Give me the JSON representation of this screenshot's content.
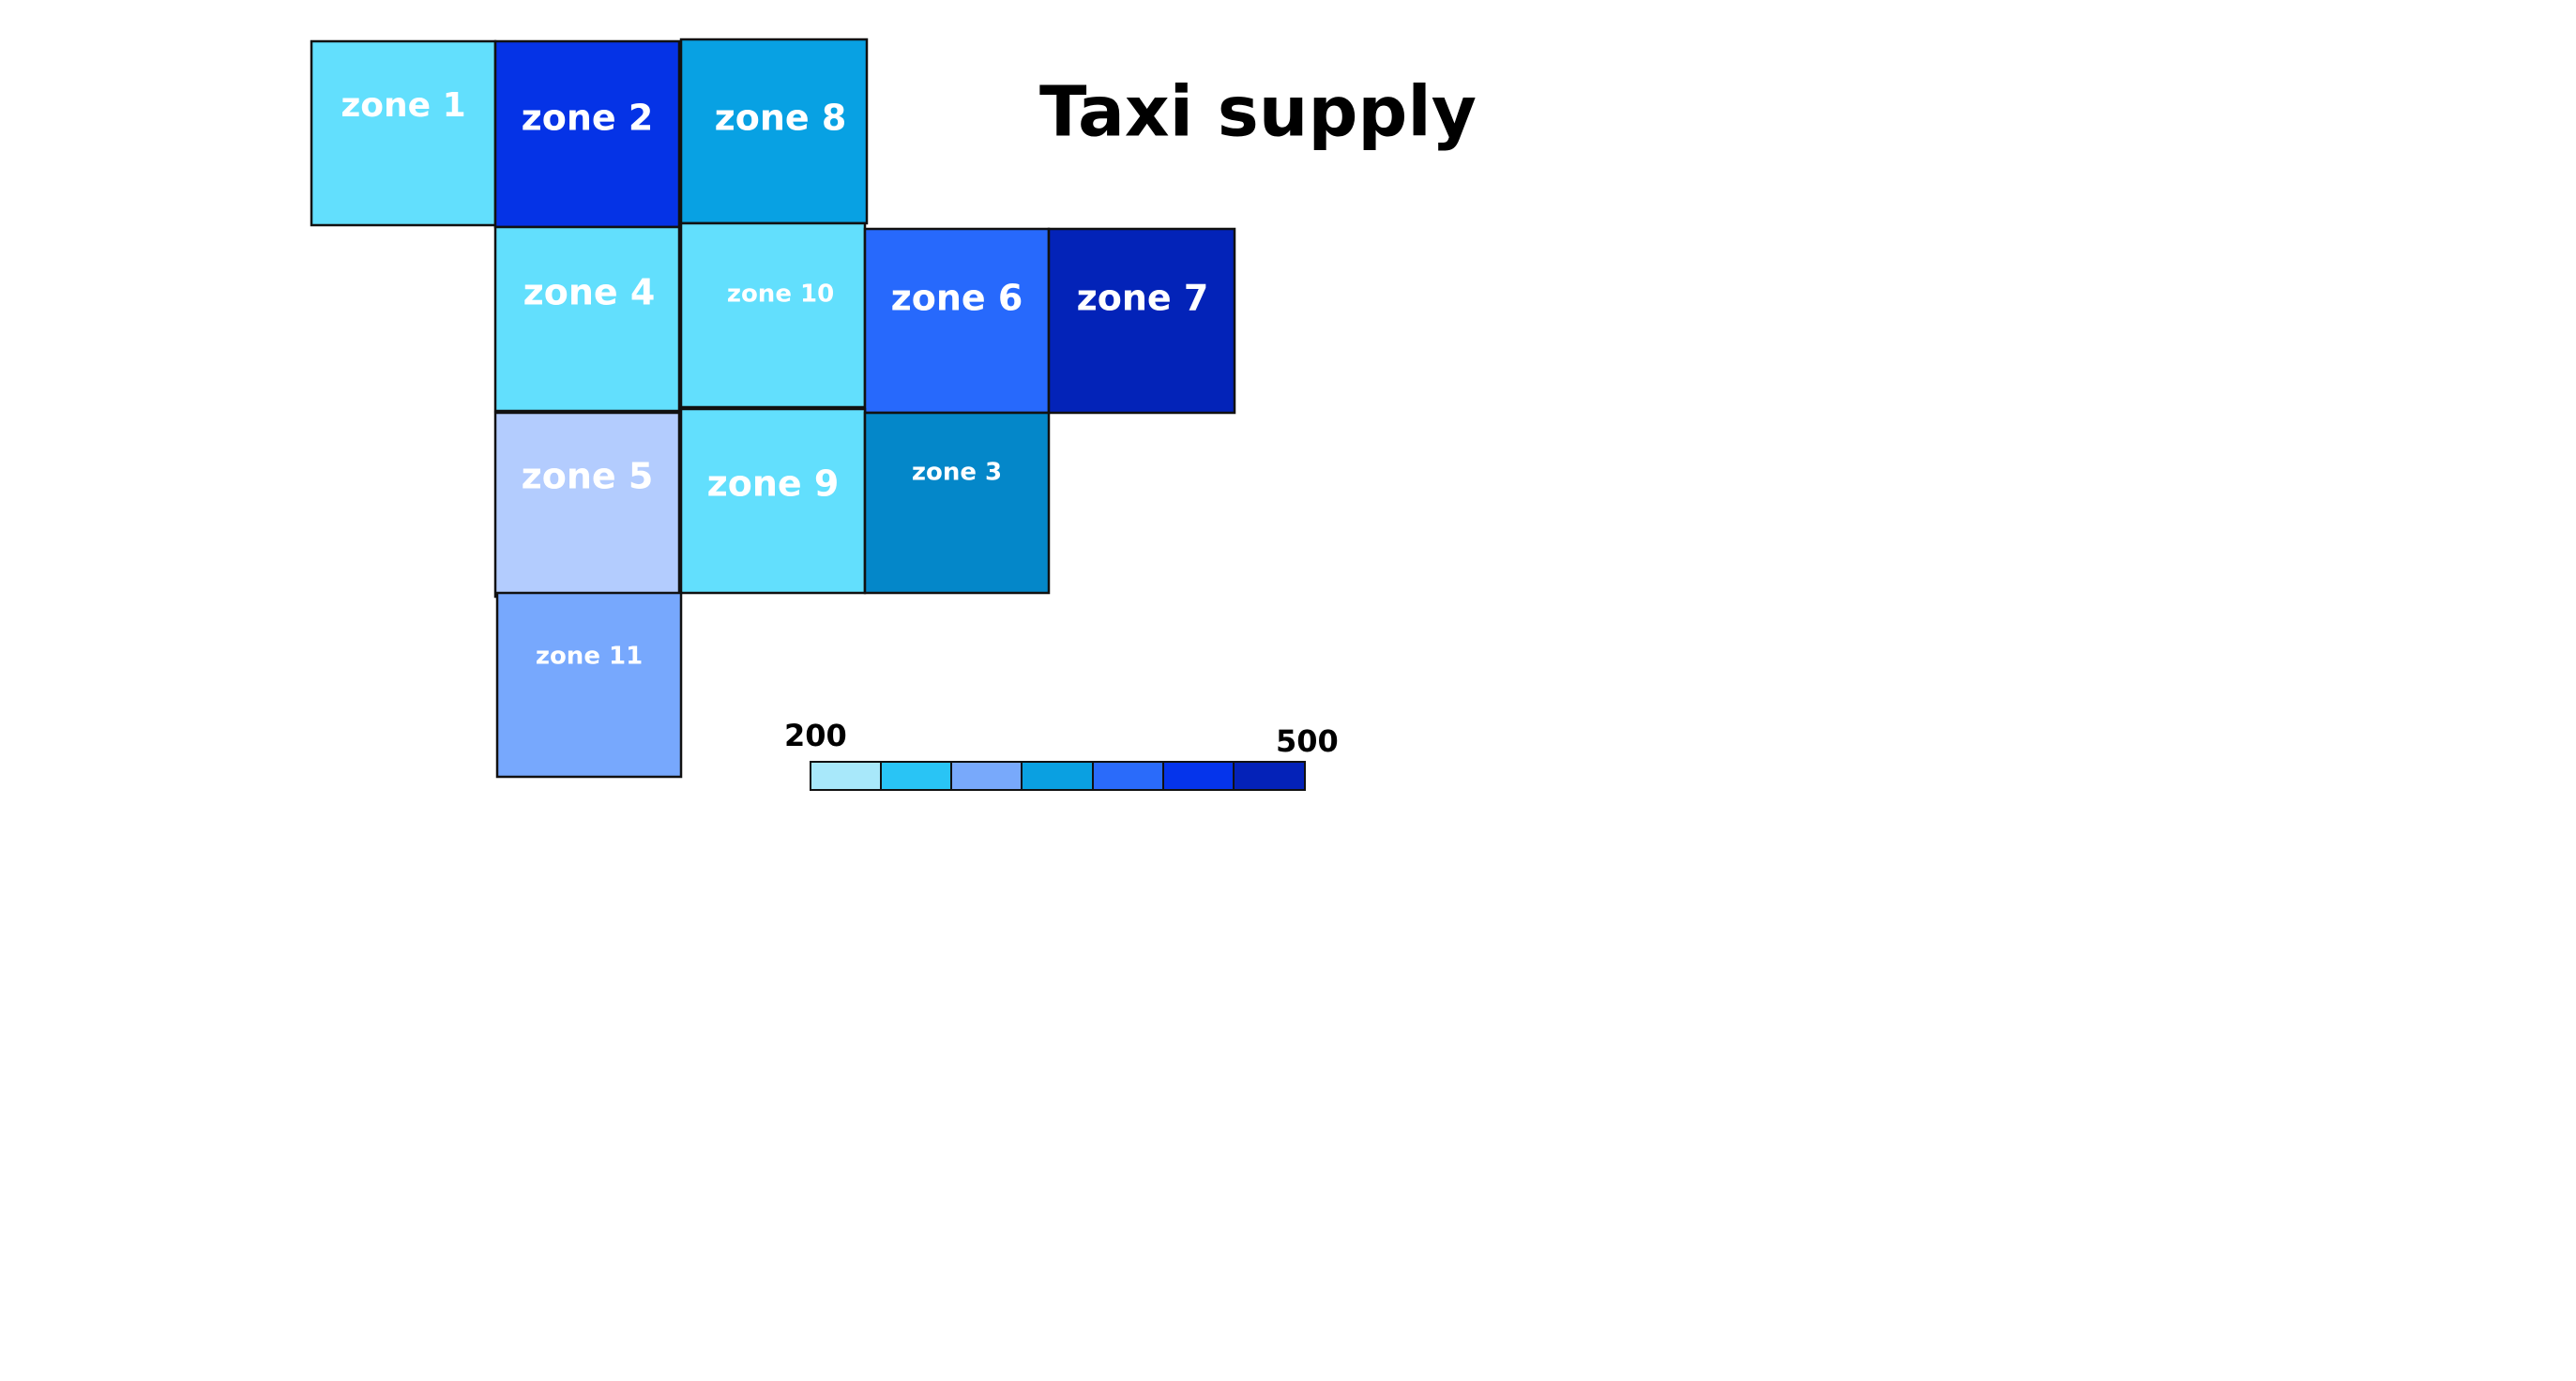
{
  "title": "Taxi supply",
  "legend": {
    "min_label": "200",
    "max_label": "500",
    "colors": [
      "#a8e8fa",
      "#29c4f5",
      "#78a9fb",
      "#0aa0e1",
      "#2a6bfa",
      "#0534eb",
      "#0422b8"
    ]
  },
  "zones": [
    {
      "label": "zone 1",
      "color": "#62dffd"
    },
    {
      "label": "zone 2",
      "color": "#0533e6"
    },
    {
      "label": "zone 8",
      "color": "#08a1e3"
    },
    {
      "label": "zone 4",
      "color": "#62dffd"
    },
    {
      "label": "zone 10",
      "color": "#62dffd"
    },
    {
      "label": "zone 6",
      "color": "#2769fc"
    },
    {
      "label": "zone 7",
      "color": "#0323b8"
    },
    {
      "label": "zone 5",
      "color": "#b3ccfe"
    },
    {
      "label": "zone 9",
      "color": "#62dffd"
    },
    {
      "label": "zone 3",
      "color": "#0487c9"
    },
    {
      "label": "zone 11",
      "color": "#77a8fd"
    }
  ]
}
